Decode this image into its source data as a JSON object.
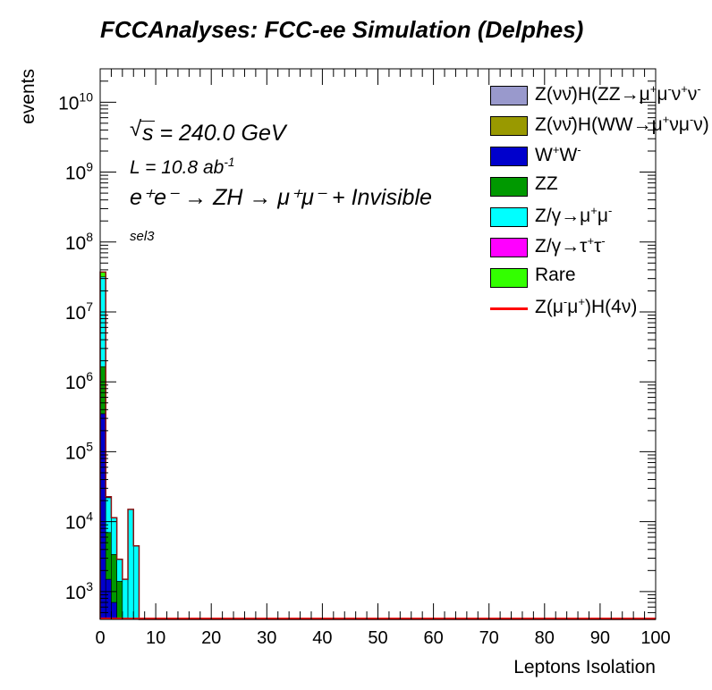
{
  "chart_data": {
    "type": "histogram-stacked",
    "title": "FCCAnalyses: FCC-ee Simulation (Delphes)",
    "xlabel": "Leptons Isolation",
    "ylabel": "events",
    "xlim": [
      0,
      100
    ],
    "ylim": [
      400,
      30000000000
    ],
    "yscale": "log",
    "xticks": [
      0,
      10,
      20,
      30,
      40,
      50,
      60,
      70,
      80,
      90,
      100
    ],
    "xtick_labels": [
      "0",
      "10",
      "20",
      "30",
      "40",
      "50",
      "60",
      "70",
      "80",
      "90",
      "100"
    ],
    "yticks": [
      1000,
      10000,
      100000,
      1000000,
      10000000,
      100000000,
      1000000000,
      10000000000
    ],
    "ytick_labels": [
      {
        "base": "10",
        "exp": "3"
      },
      {
        "base": "10",
        "exp": "4"
      },
      {
        "base": "10",
        "exp": "5"
      },
      {
        "base": "10",
        "exp": "6"
      },
      {
        "base": "10",
        "exp": "7"
      },
      {
        "base": "10",
        "exp": "8"
      },
      {
        "base": "10",
        "exp": "9"
      },
      {
        "base": "10",
        "exp": "10"
      }
    ],
    "bin_edges": [
      0,
      1,
      2,
      3,
      4,
      5,
      6,
      7
    ],
    "series": [
      {
        "name": "Z(νν̄)H(ZZ→μ⁺μ⁻ν⁺ν⁻)",
        "color": "#9999cc",
        "values": [
          0,
          0,
          0,
          0,
          0,
          0,
          0
        ]
      },
      {
        "name": "Z(νν̄)H(WW→μ⁺νμ⁻ν)",
        "color": "#999900",
        "values": [
          0,
          0,
          0,
          0,
          0,
          0,
          0
        ]
      },
      {
        "name": "W⁺W⁻",
        "color": "#0000cc",
        "values": [
          350000,
          1500,
          700,
          0,
          0,
          0,
          0
        ]
      },
      {
        "name": "ZZ",
        "color": "#009900",
        "values": [
          1300000,
          5500,
          2700,
          1400,
          0,
          0,
          0
        ]
      },
      {
        "name": "Z/γ→μ⁺μ⁻",
        "color": "#00ffff",
        "values": [
          30000000,
          15000,
          8000,
          1500,
          1500,
          15000,
          4500
        ]
      },
      {
        "name": "Z/γ→τ⁺τ⁻",
        "color": "#ff00ff",
        "values": [
          90000,
          700,
          0,
          0,
          0,
          0,
          0
        ]
      },
      {
        "name": "Rare",
        "color": "#33ff00",
        "values": [
          5500000,
          0,
          0,
          0,
          0,
          0,
          0
        ]
      }
    ],
    "signal": {
      "name": "Z(μ⁻μ⁺)H(4ν)",
      "color": "#ff0000",
      "values": [
        0,
        0,
        0,
        0,
        0,
        0,
        0
      ]
    },
    "annotations": {
      "sqrt_s": "s",
      "energy": " = 240.0 GeV",
      "lumi": "L = 10.8 ab",
      "lumi_exp": "-1",
      "process": "e⁺e⁻ → ZH → μ⁺μ⁻ + Invisible",
      "selection": "sel3"
    },
    "legend": [
      {
        "pre": "Z(νν̄)H(ZZ→μ",
        "sup1": "+",
        "mid": "μ",
        "sup2": "-",
        "post": "ν",
        "sup3": "+",
        "post2": "ν",
        "sup4": "-",
        "color": "#9999cc",
        "kind": "box"
      },
      {
        "pre": "Z(νν̄)H(WW→μ",
        "sup1": "+",
        "mid": "νμ",
        "sup2": "-",
        "post": "ν)",
        "sup3": "",
        "post2": "",
        "sup4": "",
        "color": "#999900",
        "kind": "box"
      },
      {
        "pre": "W",
        "sup1": "+",
        "mid": "W",
        "sup2": "-",
        "post": "",
        "sup3": "",
        "post2": "",
        "sup4": "",
        "color": "#0000cc",
        "kind": "box"
      },
      {
        "pre": "ZZ",
        "sup1": "",
        "mid": "",
        "sup2": "",
        "post": "",
        "sup3": "",
        "post2": "",
        "sup4": "",
        "color": "#009900",
        "kind": "box"
      },
      {
        "pre": "Z/γ→μ",
        "sup1": "+",
        "mid": "μ",
        "sup2": "-",
        "post": "",
        "sup3": "",
        "post2": "",
        "sup4": "",
        "color": "#00ffff",
        "kind": "box"
      },
      {
        "pre": "Z/γ→τ",
        "sup1": "+",
        "mid": "τ",
        "sup2": "-",
        "post": "",
        "sup3": "",
        "post2": "",
        "sup4": "",
        "color": "#ff00ff",
        "kind": "box"
      },
      {
        "pre": "Rare",
        "sup1": "",
        "mid": "",
        "sup2": "",
        "post": "",
        "sup3": "",
        "post2": "",
        "sup4": "",
        "color": "#33ff00",
        "kind": "box"
      },
      {
        "pre": "Z(μ",
        "sup1": "-",
        "mid": "μ",
        "sup2": "+",
        "post": ")H(4ν)",
        "sup3": "",
        "post2": "",
        "sup4": "",
        "color": "#ff0000",
        "kind": "line"
      }
    ]
  }
}
